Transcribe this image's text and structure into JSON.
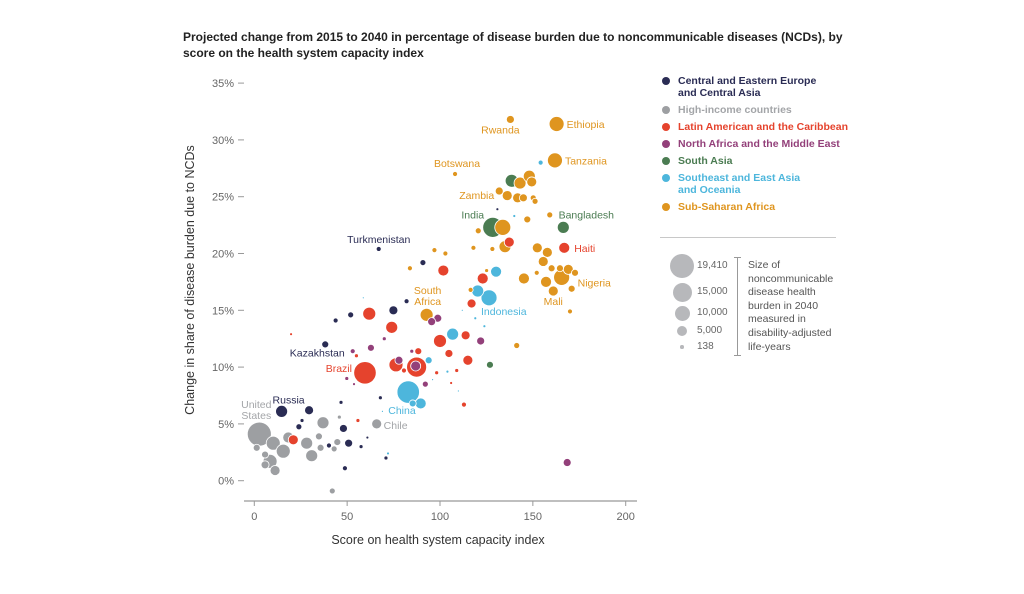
{
  "chart_data": {
    "type": "scatter",
    "title": "Projected change from 2015 to 2040 in percentage of disease burden due to noncommunicable diseases (NCDs), by score on the health system capacity index",
    "xlabel": "Score on health system capacity index",
    "ylabel": "Change in share of disease burden due to NCDs",
    "xlim": [
      -5,
      205
    ],
    "ylim": [
      -1,
      35
    ],
    "xticks": [
      0,
      50,
      100,
      150,
      200
    ],
    "yticks": [
      0,
      5,
      10,
      15,
      20,
      25,
      30,
      35
    ],
    "ytick_labels": [
      "0%",
      "5%",
      "10%",
      "15%",
      "20%",
      "25%",
      "30%",
      "35%"
    ],
    "grid": false,
    "legend_position": "right",
    "groups": [
      {
        "key": "C",
        "name": "Central and Eastern Europe and Central Asia",
        "lines": [
          "Central and Eastern Europe",
          "and Central Asia"
        ],
        "color": "#2a2c54",
        "label_color": "#2a2c54"
      },
      {
        "key": "H",
        "name": "High-income countries",
        "lines": [
          "High-income countries"
        ],
        "color": "#9d9fa2",
        "label_color": "#a3a5a8"
      },
      {
        "key": "L",
        "name": "Latin American and the Caribbean",
        "lines": [
          "Latin American and the Caribbean"
        ],
        "color": "#e5432d",
        "label_color": "#e5432d"
      },
      {
        "key": "N",
        "name": "North Africa and the Middle East",
        "lines": [
          "North Africa and the Middle East"
        ],
        "color": "#93407a",
        "label_color": "#93407a"
      },
      {
        "key": "S",
        "name": "South Asia",
        "lines": [
          "South Asia"
        ],
        "color": "#4b7c52",
        "label_color": "#4b7c52"
      },
      {
        "key": "E",
        "name": "Southeast and East Asia and Oceania",
        "lines": [
          "Southeast and East Asia",
          "and Oceania"
        ],
        "color": "#4db6dc",
        "label_color": "#4db6dc"
      },
      {
        "key": "A",
        "name": "Sub-Saharan Africa",
        "lines": [
          "Sub-Saharan Africa"
        ],
        "color": "#df951f",
        "label_color": "#df951f"
      }
    ],
    "size_legend": {
      "values": [
        "19,410",
        "15,000",
        "10,000",
        "5,000",
        "138"
      ],
      "numeric": [
        19410,
        15000,
        10000,
        5000,
        138
      ],
      "description": [
        "Size of",
        "noncommunicable",
        "disease health",
        "burden in 2040",
        "measured in",
        "disability-adjusted",
        "life-years"
      ]
    },
    "points": {
      "C": [
        [
          38.2,
          12.0,
          1650,
          "Kazakhstan"
        ],
        [
          14.7,
          6.1,
          4850,
          "Russia"
        ],
        [
          29.5,
          6.2,
          2730
        ],
        [
          25.7,
          5.3,
          540
        ],
        [
          24,
          4.75,
          1210
        ],
        [
          46.7,
          6.9,
          540
        ],
        [
          48,
          4.6,
          2160
        ],
        [
          67.9,
          7.3,
          540
        ],
        [
          60.9,
          3.8,
          300
        ],
        [
          50.8,
          3.3,
          2160
        ],
        [
          57.5,
          3,
          540
        ],
        [
          40.2,
          3.1,
          840
        ],
        [
          48.8,
          1.1,
          840
        ],
        [
          70.9,
          2,
          540
        ],
        [
          67,
          20.4,
          840,
          "Turkmenistan"
        ],
        [
          90.8,
          19.2,
          1210
        ],
        [
          82,
          15.8,
          840
        ],
        [
          74.9,
          15,
          2730
        ],
        [
          51.9,
          14.6,
          1210
        ],
        [
          43.8,
          14.1,
          840
        ],
        [
          130.9,
          23.9,
          300
        ]
      ],
      "H": [
        [
          2.7,
          4.1,
          19410,
          "United States"
        ],
        [
          10.2,
          3.3,
          6600
        ],
        [
          15.6,
          2.6,
          6600
        ],
        [
          8.5,
          1.7,
          6600
        ],
        [
          11.2,
          0.9,
          3370
        ],
        [
          1.3,
          2.9,
          1650
        ],
        [
          5.8,
          2.3,
          1650
        ],
        [
          18.3,
          3.8,
          4080
        ],
        [
          28.2,
          3.3,
          4850
        ],
        [
          30.9,
          2.2,
          4850
        ],
        [
          34.8,
          3.9,
          1650
        ],
        [
          35.7,
          2.9,
          1650
        ],
        [
          5.8,
          1.4,
          2160
        ],
        [
          37,
          5.1,
          4850
        ],
        [
          45.8,
          5.6,
          540
        ],
        [
          44.7,
          3.4,
          1650
        ],
        [
          43,
          2.8,
          1210
        ],
        [
          42,
          -0.9,
          1210
        ],
        [
          65.9,
          5,
          3370,
          "Chile"
        ]
      ],
      "L": [
        [
          59.6,
          9.5,
          17000,
          "Brazil"
        ],
        [
          55,
          11,
          540
        ],
        [
          19.8,
          12.9,
          300
        ],
        [
          21,
          3.6,
          3370
        ],
        [
          55.8,
          5.3,
          540
        ],
        [
          100,
          12.3,
          5700
        ],
        [
          104.8,
          11.2,
          2160
        ],
        [
          115,
          10.6,
          3370
        ],
        [
          113.8,
          12.8,
          2730
        ],
        [
          76.3,
          10.2,
          6600
        ],
        [
          87.4,
          10,
          13480
        ],
        [
          88.3,
          11.4,
          1650
        ],
        [
          80.6,
          9.7,
          840
        ],
        [
          98.2,
          9.5,
          540
        ],
        [
          109,
          9.7,
          540
        ],
        [
          106,
          8.6,
          300
        ],
        [
          112.9,
          6.7,
          840
        ],
        [
          101.8,
          18.5,
          4080
        ],
        [
          123,
          17.8,
          4080
        ],
        [
          117,
          15.6,
          2730
        ],
        [
          61.9,
          14.7,
          5700
        ],
        [
          74,
          13.5,
          4850
        ],
        [
          137.3,
          21,
          3370
        ],
        [
          166.9,
          20.5,
          4080,
          "Haiti"
        ]
      ],
      "N": [
        [
          53,
          11.4,
          840
        ],
        [
          62.8,
          11.7,
          1650
        ],
        [
          49.8,
          9,
          540
        ],
        [
          53.7,
          8.5,
          300
        ],
        [
          77.9,
          10.6,
          2160
        ],
        [
          86.9,
          10.1,
          3370
        ],
        [
          84.8,
          11.4,
          540
        ],
        [
          92.1,
          8.5,
          1210
        ],
        [
          70,
          12.5,
          540
        ],
        [
          98.8,
          14.3,
          2160
        ],
        [
          95.5,
          14,
          2160
        ],
        [
          121.9,
          12.3,
          2160
        ],
        [
          168.5,
          1.6,
          2160
        ]
      ],
      "S": [
        [
          126.9,
          10.2,
          1650
        ],
        [
          138.6,
          26.4,
          5700
        ],
        [
          128.4,
          22.3,
          13480,
          "India"
        ],
        [
          166.4,
          22.3,
          4850,
          "Bangladesh"
        ]
      ],
      "E": [
        [
          72,
          2.4,
          300
        ],
        [
          69,
          6.1,
          135
        ],
        [
          106.8,
          12.9,
          4850
        ],
        [
          93.9,
          10.6,
          1650
        ],
        [
          82.9,
          7.8,
          17000,
          "China"
        ],
        [
          89.6,
          6.8,
          4080
        ],
        [
          85.3,
          6.8,
          1650
        ],
        [
          104,
          9.6,
          300
        ],
        [
          109.9,
          7.9,
          135
        ],
        [
          96,
          8.9,
          135
        ],
        [
          130.2,
          18.4,
          4080
        ],
        [
          120.3,
          16.7,
          4850
        ],
        [
          126.4,
          16.1,
          8630,
          "Indonesia"
        ],
        [
          58.7,
          16.1,
          135
        ],
        [
          119,
          14.3,
          300
        ],
        [
          123.9,
          13.6,
          300
        ],
        [
          112,
          15,
          135
        ],
        [
          140,
          23.3,
          300
        ],
        [
          154.2,
          28,
          840
        ]
      ],
      "A": [
        [
          137.9,
          31.8,
          2160,
          "Rwanda"
        ],
        [
          162.8,
          31.4,
          7580,
          "Ethiopia"
        ],
        [
          161.9,
          28.2,
          7580,
          "Tanzania"
        ],
        [
          108.1,
          27,
          840,
          "Botswana"
        ],
        [
          143.1,
          26.2,
          4850
        ],
        [
          148.1,
          26.8,
          4850
        ],
        [
          149.4,
          26.3,
          3370
        ],
        [
          131.9,
          25.5,
          2160,
          "Zambia"
        ],
        [
          136.2,
          25.1,
          3370
        ],
        [
          141.8,
          24.9,
          3370
        ],
        [
          144.9,
          24.9,
          2160
        ],
        [
          150.2,
          24.9,
          1210
        ],
        [
          151.2,
          24.6,
          1210
        ],
        [
          147,
          23,
          1650
        ],
        [
          159.1,
          23.4,
          1210
        ],
        [
          133.8,
          22.3,
          8630
        ],
        [
          120.6,
          22,
          1210
        ],
        [
          135,
          20.6,
          4850
        ],
        [
          97,
          20.3,
          840
        ],
        [
          102.9,
          20,
          840
        ],
        [
          118,
          20.5,
          840
        ],
        [
          128.2,
          20.4,
          840
        ],
        [
          83.8,
          18.7,
          840
        ],
        [
          116.5,
          16.8,
          840
        ],
        [
          92.8,
          14.6,
          5700,
          "South Africa"
        ],
        [
          141.3,
          11.9,
          1210
        ],
        [
          152.4,
          20.5,
          3370
        ],
        [
          157.8,
          20.1,
          3370
        ],
        [
          155.6,
          19.3,
          3370
        ],
        [
          160.1,
          18.7,
          1650
        ],
        [
          164.6,
          18.7,
          1650
        ],
        [
          169.1,
          18.6,
          3370
        ],
        [
          172.7,
          18.3,
          1650
        ],
        [
          165.5,
          17.9,
          8630,
          "Nigeria"
        ],
        [
          157.1,
          17.5,
          4080
        ],
        [
          161,
          16.7,
          3370,
          "Mali"
        ],
        [
          170.9,
          16.9,
          1650
        ],
        [
          145.2,
          17.8,
          4080
        ],
        [
          152.1,
          18.3,
          840
        ],
        [
          170,
          14.9,
          840
        ],
        [
          125.1,
          18.5,
          540
        ]
      ]
    }
  }
}
